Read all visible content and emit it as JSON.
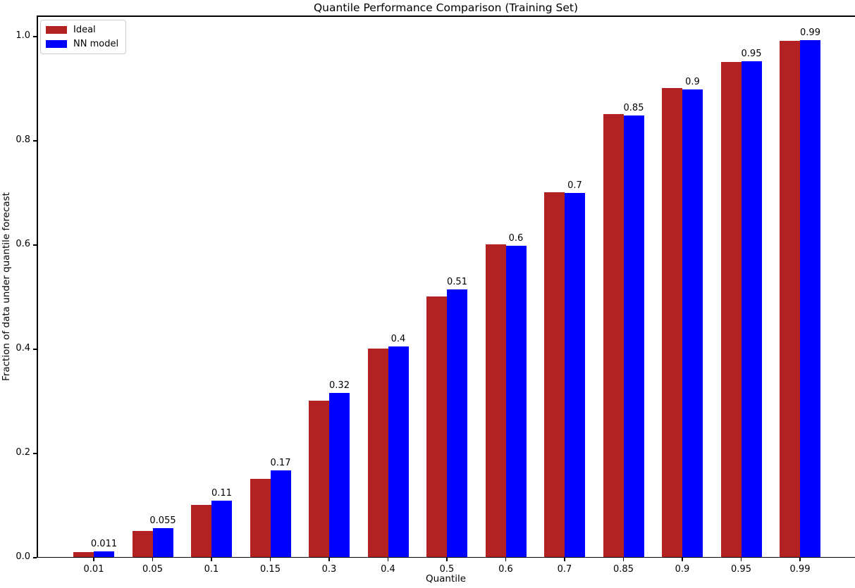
{
  "chart_data": {
    "type": "bar",
    "title": "Quantile Performance Comparison (Training Set)",
    "xlabel": "Quantile",
    "ylabel": "Fraction of data under quantile forecast",
    "categories": [
      "0.01",
      "0.05",
      "0.1",
      "0.15",
      "0.3",
      "0.4",
      "0.5",
      "0.6",
      "0.7",
      "0.85",
      "0.9",
      "0.95",
      "0.99"
    ],
    "series": [
      {
        "name": "Ideal",
        "color": "#b22222",
        "values": [
          0.01,
          0.05,
          0.1,
          0.15,
          0.3,
          0.4,
          0.5,
          0.6,
          0.7,
          0.85,
          0.9,
          0.95,
          0.99
        ]
      },
      {
        "name": "NN model",
        "color": "#0000ff",
        "values": [
          0.011,
          0.055,
          0.108,
          0.166,
          0.315,
          0.404,
          0.514,
          0.597,
          0.699,
          0.847,
          0.897,
          0.951,
          0.992
        ],
        "bar_labels": [
          "0.011",
          "0.055",
          "0.11",
          "0.17",
          "0.32",
          "0.4",
          "0.51",
          "0.6",
          "0.7",
          "0.85",
          "0.9",
          "0.95",
          "0.99"
        ]
      }
    ],
    "y_ticks": [
      {
        "label": "0.0",
        "value": 0.0
      },
      {
        "label": "0.2",
        "value": 0.2
      },
      {
        "label": "0.4",
        "value": 0.4
      },
      {
        "label": "0.6",
        "value": 0.6
      },
      {
        "label": "0.8",
        "value": 0.8
      },
      {
        "label": "1.0",
        "value": 1.0
      }
    ],
    "ylim": [
      0,
      1.04
    ],
    "grid": false,
    "legend_position": "upper left"
  }
}
